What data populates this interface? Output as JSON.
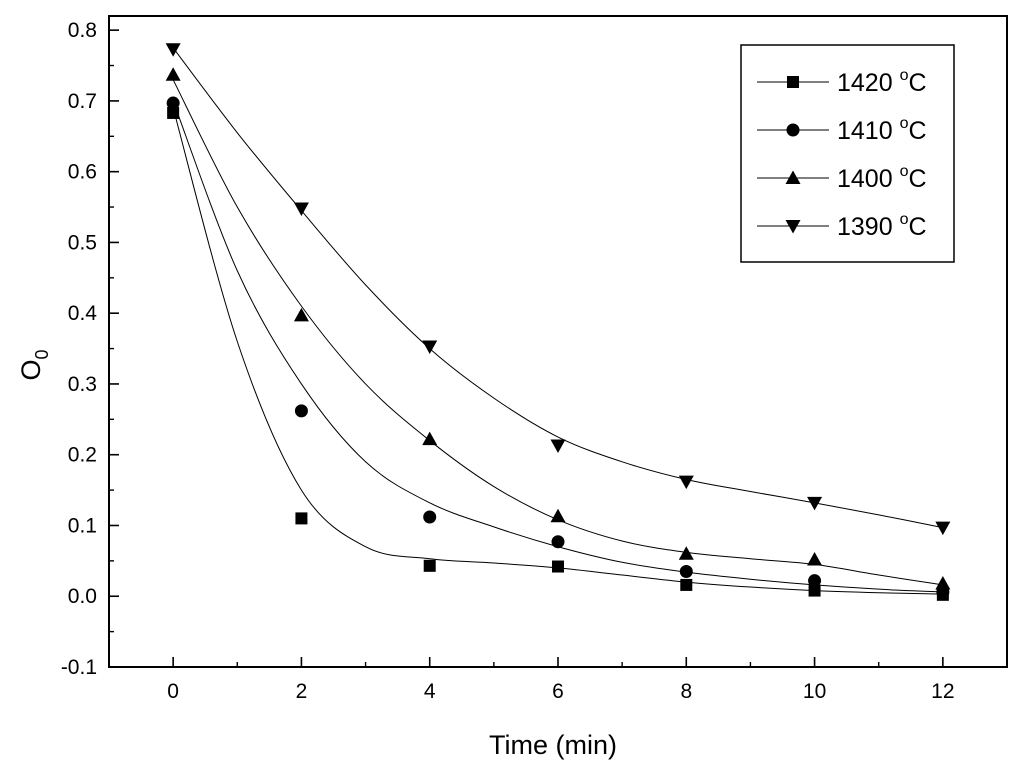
{
  "chart_data": {
    "type": "scatter",
    "title": "",
    "xlabel": "Time (min)",
    "ylabel_main": "O",
    "ylabel_sub": "0",
    "xlim": [
      -1,
      13
    ],
    "ylim": [
      -0.1,
      0.82
    ],
    "xticks": [
      0,
      2,
      4,
      6,
      8,
      10,
      12
    ],
    "xtick_labels": [
      "0",
      "2",
      "4",
      "6",
      "8",
      "10",
      "12"
    ],
    "yticks": [
      -0.1,
      0.0,
      0.1,
      0.2,
      0.3,
      0.4,
      0.5,
      0.6,
      0.7,
      0.8
    ],
    "ytick_labels": [
      "-0.1",
      "0.0",
      "0.1",
      "0.2",
      "0.3",
      "0.4",
      "0.5",
      "0.6",
      "0.7",
      "0.8"
    ],
    "grid": false,
    "legend_position": "top-right",
    "series": [
      {
        "name": "1420",
        "marker": "square",
        "x": [
          0,
          2,
          4,
          6,
          8,
          10,
          12
        ],
        "y": [
          0.683,
          0.11,
          0.043,
          0.042,
          0.016,
          0.008,
          0.002
        ],
        "fit": [
          [
            0,
            0.69
          ],
          [
            1,
            0.36
          ],
          [
            2,
            0.15
          ],
          [
            3,
            0.07
          ],
          [
            4,
            0.053
          ],
          [
            5,
            0.047
          ],
          [
            6,
            0.04
          ],
          [
            7,
            0.03
          ],
          [
            8,
            0.02
          ],
          [
            9,
            0.013
          ],
          [
            10,
            0.008
          ],
          [
            11,
            0.005
          ],
          [
            12,
            0.003
          ]
        ]
      },
      {
        "name": "1410",
        "marker": "circle",
        "x": [
          0,
          2,
          4,
          6,
          8,
          10,
          12
        ],
        "y": [
          0.697,
          0.262,
          0.112,
          0.077,
          0.035,
          0.022,
          0.006
        ],
        "fit": [
          [
            0,
            0.7
          ],
          [
            1,
            0.46
          ],
          [
            2,
            0.3
          ],
          [
            3,
            0.19
          ],
          [
            4,
            0.132
          ],
          [
            5,
            0.098
          ],
          [
            6,
            0.07
          ],
          [
            7,
            0.048
          ],
          [
            8,
            0.034
          ],
          [
            9,
            0.024
          ],
          [
            10,
            0.016
          ],
          [
            11,
            0.01
          ],
          [
            12,
            0.006
          ]
        ]
      },
      {
        "name": "1400",
        "marker": "triangle-up",
        "x": [
          0,
          2,
          4,
          6,
          8,
          10,
          12
        ],
        "y": [
          0.737,
          0.397,
          0.222,
          0.113,
          0.06,
          0.052,
          0.018
        ],
        "fit": [
          [
            0,
            0.73
          ],
          [
            1,
            0.55
          ],
          [
            2,
            0.41
          ],
          [
            3,
            0.3
          ],
          [
            4,
            0.22
          ],
          [
            5,
            0.155
          ],
          [
            6,
            0.108
          ],
          [
            7,
            0.078
          ],
          [
            8,
            0.062
          ],
          [
            9,
            0.053
          ],
          [
            10,
            0.045
          ],
          [
            11,
            0.03
          ],
          [
            12,
            0.016
          ]
        ]
      },
      {
        "name": "1390",
        "marker": "triangle-down",
        "x": [
          0,
          2,
          4,
          6,
          8,
          10,
          12
        ],
        "y": [
          0.773,
          0.548,
          0.353,
          0.213,
          0.162,
          0.132,
          0.097
        ],
        "fit": [
          [
            0,
            0.775
          ],
          [
            1,
            0.655
          ],
          [
            2,
            0.545
          ],
          [
            3,
            0.44
          ],
          [
            4,
            0.35
          ],
          [
            5,
            0.28
          ],
          [
            6,
            0.225
          ],
          [
            7,
            0.19
          ],
          [
            8,
            0.165
          ],
          [
            9,
            0.148
          ],
          [
            10,
            0.132
          ],
          [
            11,
            0.115
          ],
          [
            12,
            0.097
          ]
        ]
      }
    ],
    "legend_unit_sup": "o",
    "legend_unit": "C"
  }
}
